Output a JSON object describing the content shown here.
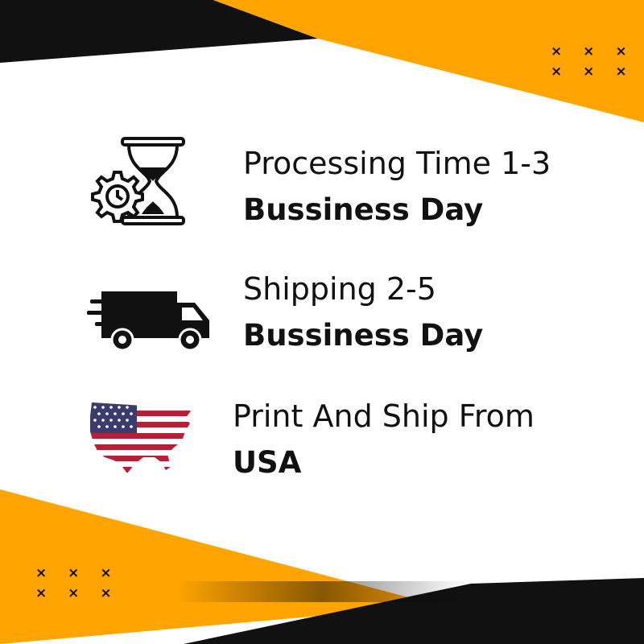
{
  "background": {
    "accent": "#FFA400",
    "dark": "#111111",
    "base": "#FFFFFF"
  },
  "decor": {
    "mark_top": "× × ×",
    "mark_bottom": "× × ×"
  },
  "features": [
    {
      "icon": "hourglass-gear-icon",
      "line1": "Processing Time 1-3",
      "line2": "Bussiness Day"
    },
    {
      "icon": "delivery-truck-icon",
      "line1": "Shipping 2-5",
      "line2": "Bussiness Day"
    },
    {
      "icon": "usa-flag-map-icon",
      "line1": "Print And Ship From",
      "line2": "USA"
    }
  ]
}
